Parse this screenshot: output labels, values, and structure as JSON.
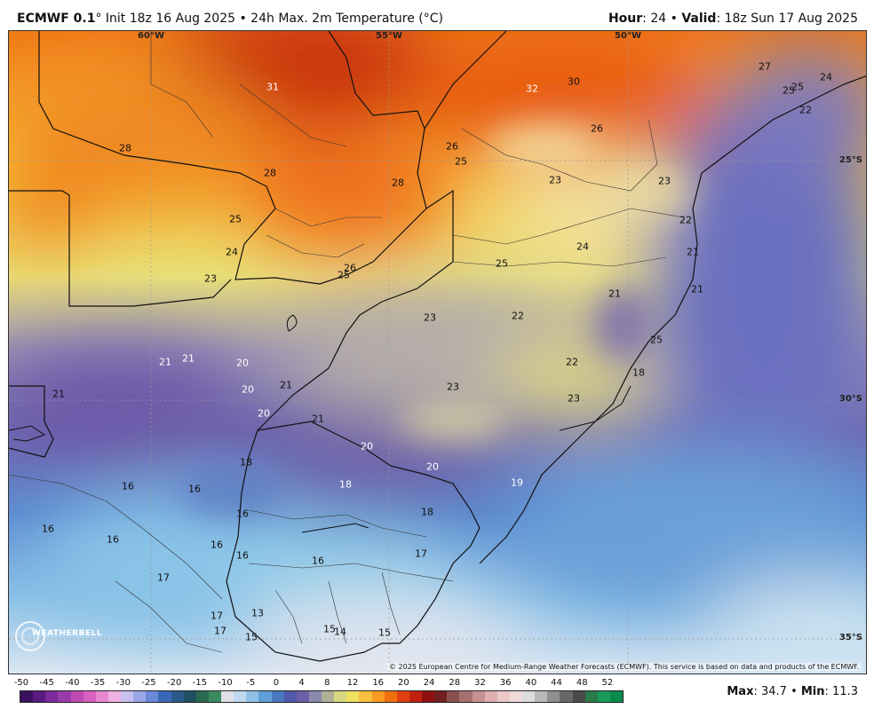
{
  "header": {
    "model": "ECMWF 0.1",
    "init": "° Init 18z 16 Aug 2025 • 24h Max. 2m Temperature (°C)",
    "hour_label": "Hour",
    "hour_value": ": 24 • ",
    "valid_label": "Valid",
    "valid_value": ": 18z Sun 17 Aug 2025"
  },
  "map": {
    "lon_labels": [
      {
        "text": "60°W"
      },
      {
        "text": "55°W"
      },
      {
        "text": "50°W"
      }
    ],
    "lat_labels": [
      {
        "text": "25°S"
      },
      {
        "text": "30°S"
      },
      {
        "text": "35°S"
      }
    ],
    "temps": [
      "31",
      "32",
      "30",
      "27",
      "25",
      "25",
      "24",
      "22",
      "28",
      "26",
      "25",
      "28",
      "28",
      "26",
      "23",
      "23",
      "25",
      "22",
      "24",
      "25",
      "24",
      "21",
      "23",
      "26",
      "25",
      "21",
      "23",
      "22",
      "21",
      "21",
      "21",
      "20",
      "20",
      "21",
      "25",
      "22",
      "20",
      "21",
      "23",
      "23",
      "18",
      "21",
      "20",
      "18",
      "20",
      "19",
      "16",
      "16",
      "18",
      "18",
      "16",
      "16",
      "16",
      "16",
      "16",
      "17",
      "17",
      "16",
      "13",
      "15",
      "15",
      "14",
      "15",
      "17",
      "17"
    ],
    "copyright": "© 2025 European Centre for Medium-Range Weather Forecasts (ECMWF). This service is based on data and products of the ECMWF.",
    "logo_text": "WEATHERBELL"
  },
  "scale": {
    "ticks": [
      "-50",
      "-45",
      "-40",
      "-35",
      "-30",
      "-25",
      "-20",
      "-15",
      "-10",
      "-5",
      "0",
      "4",
      "8",
      "12",
      "16",
      "20",
      "24",
      "28",
      "32",
      "36",
      "40",
      "44",
      "48",
      "52"
    ],
    "colors": [
      "#3a1060",
      "#5a1a80",
      "#7a2a9a",
      "#9a3aaa",
      "#c04ab4",
      "#d860c0",
      "#e888d0",
      "#f0b0e0",
      "#c8c0f0",
      "#9aa8e8",
      "#6a88d8",
      "#3a68b8",
      "#2a5a8a",
      "#205060",
      "#2a6a50",
      "#3a8a60",
      "#e0e0e8",
      "#c0d8f0",
      "#90c0e8",
      "#60a0d8",
      "#4a78c0",
      "#5058a8",
      "#6a60a8",
      "#8a8ab0",
      "#b0b098",
      "#d8d880",
      "#f0e060",
      "#f8c040",
      "#f89a20",
      "#f07010",
      "#e04010",
      "#c02010",
      "#901010",
      "#702020",
      "#8a5050",
      "#a87070",
      "#c89090",
      "#e0b0b0",
      "#ecc8c8",
      "#f0dada",
      "#dcdcdc",
      "#b8b8b8",
      "#909090",
      "#686868",
      "#4a4a4a",
      "#2a7a4a",
      "#1a9a5a",
      "#0a8a4a"
    ]
  },
  "stats": {
    "max_label": "Max",
    "max_value": ": 34.7 • ",
    "min_label": "Min",
    "min_value": ": 11.3"
  }
}
